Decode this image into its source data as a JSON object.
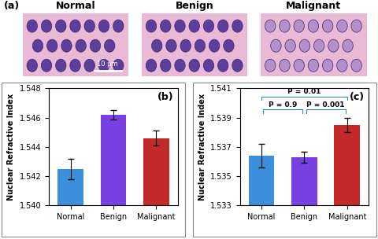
{
  "panel_a": {
    "label": "(a)",
    "images": [
      "Normal",
      "Benign",
      "Malignant"
    ],
    "scale_bar": "10 µm"
  },
  "chart_data": [
    {
      "type": "bar",
      "title": "(b)",
      "ylabel": "Nuclear Refractive Index",
      "categories": [
        "Normal",
        "Benign",
        "Malignant"
      ],
      "values": [
        1.5425,
        1.5462,
        1.5446
      ],
      "errors": [
        0.0007,
        0.0003,
        0.0005
      ],
      "colors": [
        "#3b8fdb",
        "#7a3fe0",
        "#c42a2a"
      ],
      "ylim": [
        1.54,
        1.548
      ],
      "yticks": [
        {
          "value": 1.54,
          "label": "1.540"
        },
        {
          "value": 1.542,
          "label": "1.542"
        },
        {
          "value": 1.544,
          "label": "1.544"
        },
        {
          "value": 1.546,
          "label": "1.546"
        },
        {
          "value": 1.548,
          "label": "1.548"
        }
      ]
    },
    {
      "type": "bar",
      "title": "(c)",
      "ylabel": "Nuclear Refractive Index",
      "categories": [
        "Normal",
        "Benign",
        "Malignant"
      ],
      "values": [
        1.5364,
        1.5363,
        1.5385
      ],
      "errors": [
        0.0008,
        0.0004,
        0.0005
      ],
      "colors": [
        "#3b8fdb",
        "#7a3fe0",
        "#c42a2a"
      ],
      "ylim": [
        1.533,
        1.541
      ],
      "yticks": [
        1.533,
        1.535,
        1.537,
        1.539,
        1.541
      ],
      "annotations": [
        {
          "text": "P = 0.9",
          "from": "Normal",
          "to": "Benign"
        },
        {
          "text": "P = 0.001",
          "from": "Benign",
          "to": "Malignant"
        },
        {
          "text": "P = 0.01",
          "from": "Normal",
          "to": "Malignant"
        }
      ]
    }
  ]
}
